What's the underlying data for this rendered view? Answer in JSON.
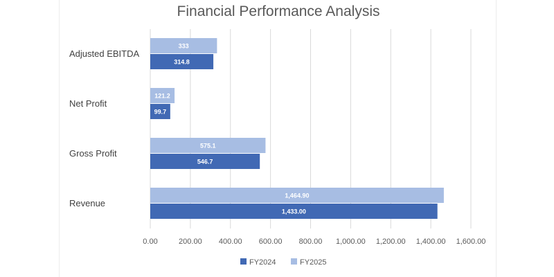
{
  "chart_data": {
    "type": "bar",
    "orientation": "horizontal",
    "title": "Financial Performance Analysis",
    "xlabel": "",
    "ylabel": "",
    "xlim": [
      0,
      1600
    ],
    "x_ticks": [
      "0.00",
      "200.00",
      "400.00",
      "600.00",
      "800.00",
      "1,000.00",
      "1,200.00",
      "1,400.00",
      "1,600.00"
    ],
    "grid": "vertical",
    "legend_position": "bottom",
    "categories": [
      "Adjusted EBITDA",
      "Net Profit",
      "Gross Profit",
      "Revenue"
    ],
    "series": [
      {
        "name": "FY2024",
        "color": "#4169b4",
        "values": [
          314.8,
          99.7,
          546.7,
          1433.0
        ],
        "labels": [
          "314.8",
          "99.7",
          "546.7",
          "1,433.00"
        ]
      },
      {
        "name": "FY2025",
        "color": "#a7bde3",
        "values": [
          333,
          121.2,
          575.1,
          1464.9
        ],
        "labels": [
          "333",
          "121.2",
          "575.1",
          "1,464.90"
        ]
      }
    ]
  }
}
